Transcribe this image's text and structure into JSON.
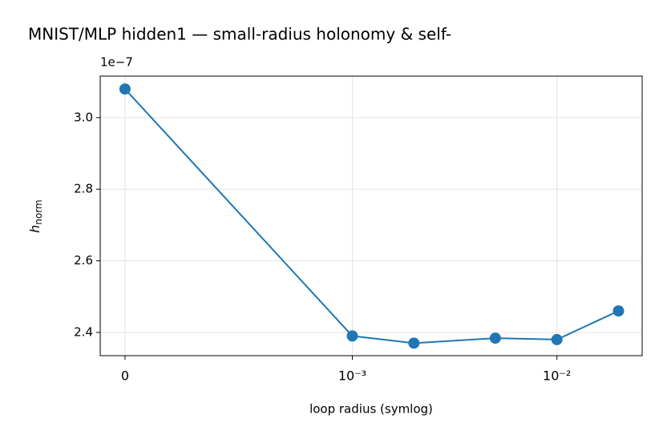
{
  "chart_data": {
    "type": "line",
    "title": "MNIST/MLP hidden1 — small-radius holonomy & self-",
    "xlabel": "loop radius (symlog)",
    "ylabel": "h",
    "ylabel_subscript": "norm",
    "y_offset_label": "1e−7",
    "xscale": "symlog",
    "linthresh": 0.001,
    "x": [
      0,
      0.001,
      0.002,
      0.005,
      0.01,
      0.02
    ],
    "values": [
      3.08,
      2.39,
      2.37,
      2.384,
      2.38,
      2.46
    ],
    "color": "#1f77b4",
    "xlim": [
      -0.000109,
      0.0261
    ],
    "ylim": [
      2.335,
      3.116
    ],
    "xticks": [
      0,
      {
        "value": 0.001,
        "label": "10⁻³"
      },
      {
        "value": 0.01,
        "label": "10⁻²"
      }
    ],
    "yticks": [
      2.4,
      2.6,
      2.8,
      {
        "value": 3,
        "label": "3.0"
      }
    ],
    "grid": true
  }
}
